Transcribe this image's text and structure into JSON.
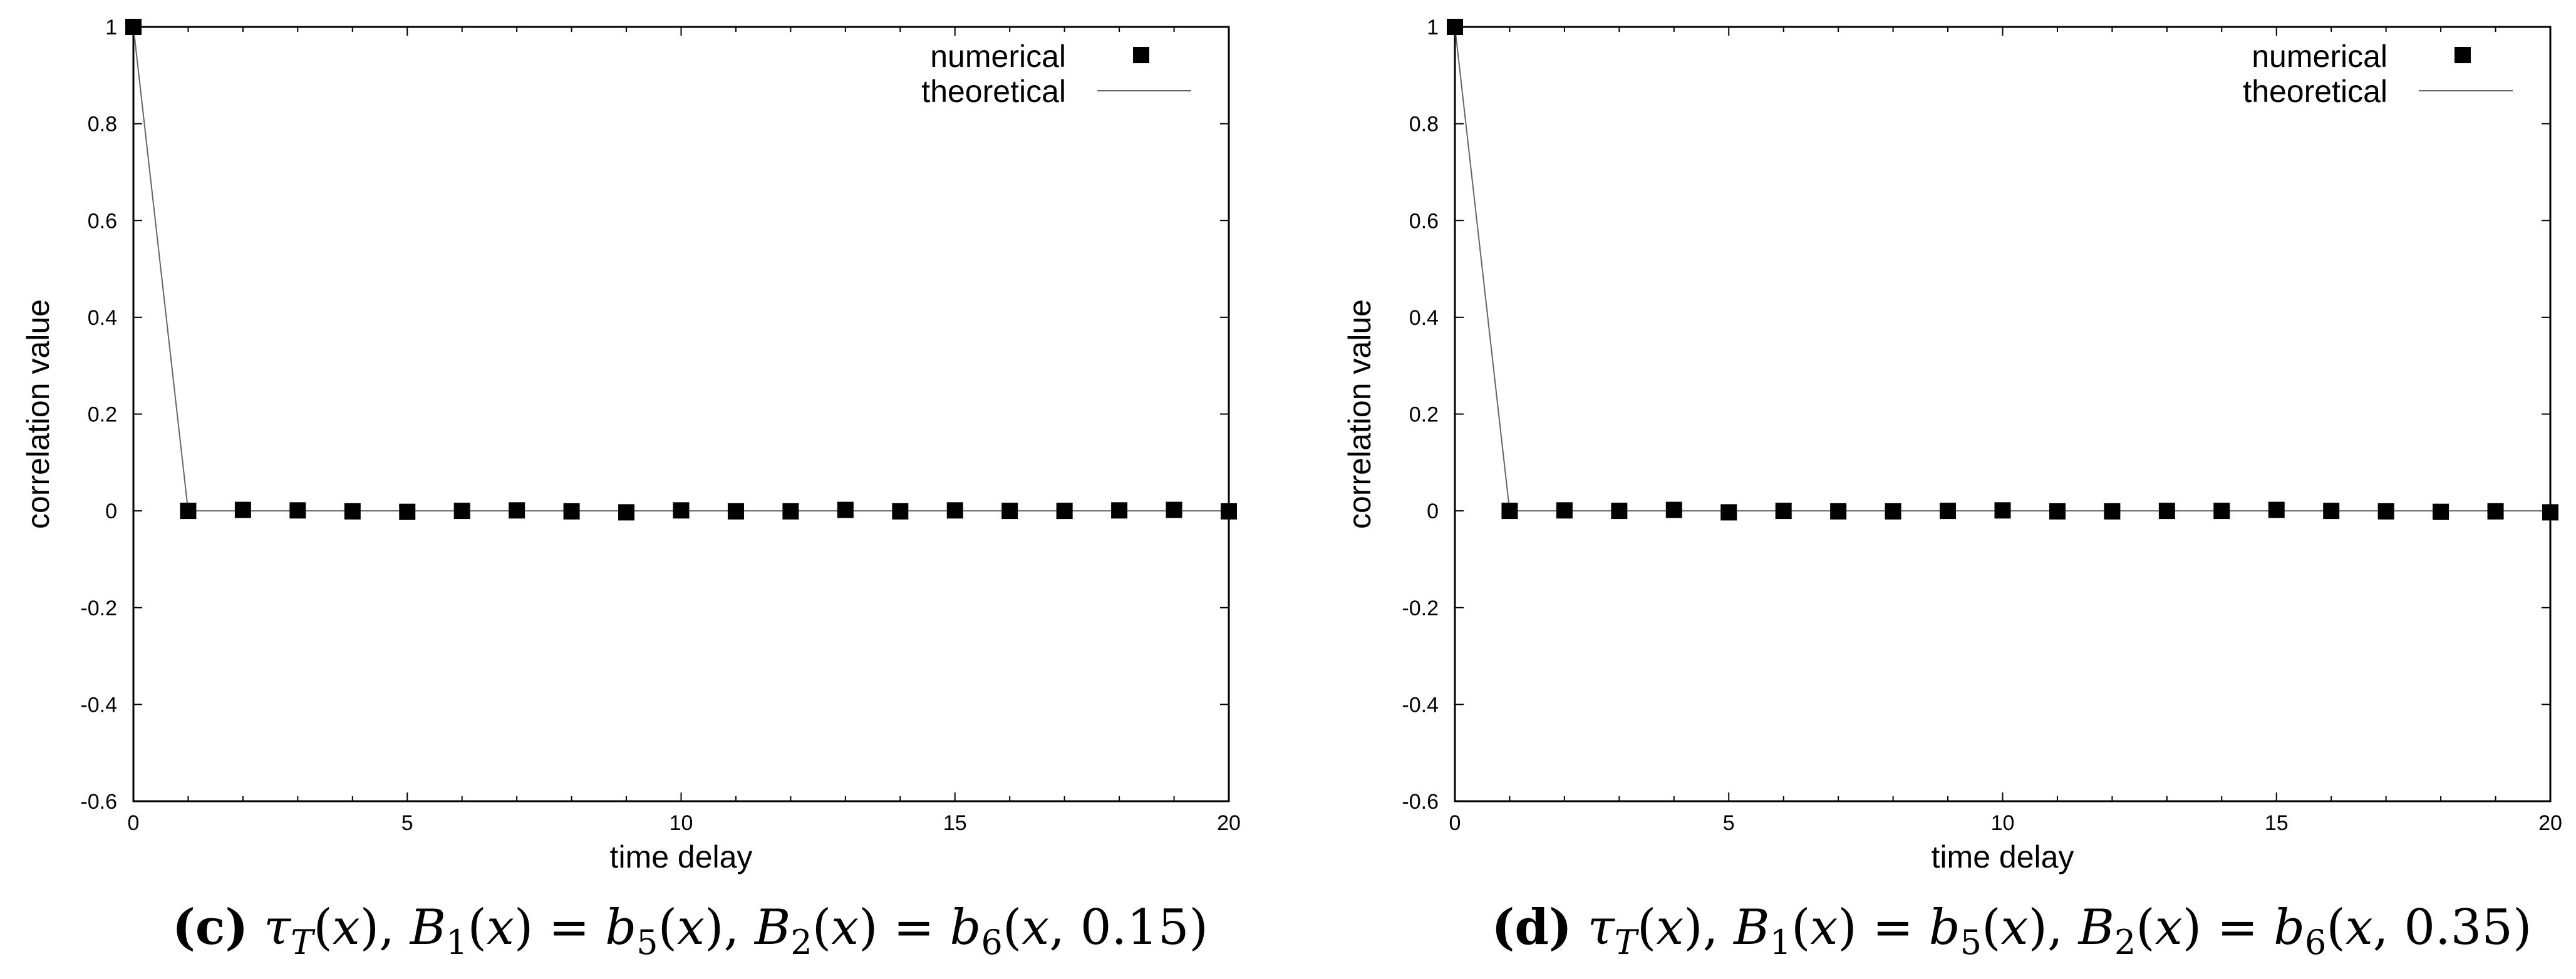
{
  "chart_data": [
    {
      "type": "scatter",
      "panel_id": "c",
      "caption_label": "(c)",
      "caption_formula": "τT(x), B1(x) = b5(x), B2(x) = b6(x, 0.15)",
      "caption_parts": [
        "τ",
        "T",
        "(",
        "x",
        "), ",
        "B",
        "1",
        "(",
        "x",
        ") = ",
        "b",
        "5",
        "(",
        "x",
        "), ",
        "B",
        "2",
        "(",
        "x",
        ") = ",
        "b",
        "6",
        "(",
        "x",
        ", 0.15)"
      ],
      "xlabel": "time delay",
      "ylabel": "correlation value",
      "xlim": [
        0,
        20
      ],
      "ylim": [
        -0.6,
        1
      ],
      "xticks": [
        "0",
        "5",
        "10",
        "15",
        "20"
      ],
      "yticks": [
        "-0.6",
        "-0.4",
        "-0.2",
        "0",
        "0.2",
        "0.4",
        "0.6",
        "0.8",
        "1"
      ],
      "legend_position": "top-right",
      "grid": false,
      "series": [
        {
          "name": "numerical",
          "kind": "markers",
          "x": [
            0,
            1,
            2,
            3,
            4,
            5,
            6,
            7,
            8,
            9,
            10,
            11,
            12,
            13,
            14,
            15,
            16,
            17,
            18,
            19,
            20
          ],
          "y": [
            1,
            0.0,
            0.002,
            0.001,
            -0.001,
            -0.002,
            0.0,
            0.001,
            -0.001,
            -0.003,
            0.001,
            -0.001,
            -0.001,
            0.002,
            -0.001,
            0.001,
            0.0,
            0.0,
            0.001,
            0.002,
            -0.001
          ]
        },
        {
          "name": "theoretical",
          "kind": "line",
          "x": [
            0,
            1,
            2,
            3,
            4,
            5,
            6,
            7,
            8,
            9,
            10,
            11,
            12,
            13,
            14,
            15,
            16,
            17,
            18,
            19,
            20
          ],
          "y": [
            1,
            0,
            0,
            0,
            0,
            0,
            0,
            0,
            0,
            0,
            0,
            0,
            0,
            0,
            0,
            0,
            0,
            0,
            0,
            0,
            0
          ]
        }
      ]
    },
    {
      "type": "scatter",
      "panel_id": "d",
      "caption_label": "(d)",
      "caption_formula": "τT(x), B1(x) = b5(x), B2(x) = b6(x, 0.35)",
      "caption_parts": [
        "τ",
        "T",
        "(",
        "x",
        "), ",
        "B",
        "1",
        "(",
        "x",
        ") = ",
        "b",
        "5",
        "(",
        "x",
        "), ",
        "B",
        "2",
        "(",
        "x",
        ") = ",
        "b",
        "6",
        "(",
        "x",
        ", 0.35)"
      ],
      "xlabel": "time delay",
      "ylabel": "correlation value",
      "xlim": [
        0,
        20
      ],
      "ylim": [
        -0.6,
        1
      ],
      "xticks": [
        "0",
        "5",
        "10",
        "15",
        "20"
      ],
      "yticks": [
        "-0.6",
        "-0.4",
        "-0.2",
        "0",
        "0.2",
        "0.4",
        "0.6",
        "0.8",
        "1"
      ],
      "legend_position": "top-right",
      "grid": false,
      "series": [
        {
          "name": "numerical",
          "kind": "markers",
          "x": [
            0,
            1,
            2,
            3,
            4,
            5,
            6,
            7,
            8,
            9,
            10,
            11,
            12,
            13,
            14,
            15,
            16,
            17,
            18,
            19,
            20
          ],
          "y": [
            1,
            0.0,
            0.001,
            0.0,
            0.002,
            -0.003,
            0.0,
            -0.001,
            -0.001,
            0.0,
            0.001,
            -0.001,
            -0.001,
            0.0,
            0.0,
            0.002,
            0.0,
            -0.001,
            -0.002,
            -0.001,
            -0.003
          ]
        },
        {
          "name": "theoretical",
          "kind": "line",
          "x": [
            0,
            1,
            2,
            3,
            4,
            5,
            6,
            7,
            8,
            9,
            10,
            11,
            12,
            13,
            14,
            15,
            16,
            17,
            18,
            19,
            20
          ],
          "y": [
            1,
            0,
            0,
            0,
            0,
            0,
            0,
            0,
            0,
            0,
            0,
            0,
            0,
            0,
            0,
            0,
            0,
            0,
            0,
            0,
            0
          ]
        }
      ]
    }
  ]
}
